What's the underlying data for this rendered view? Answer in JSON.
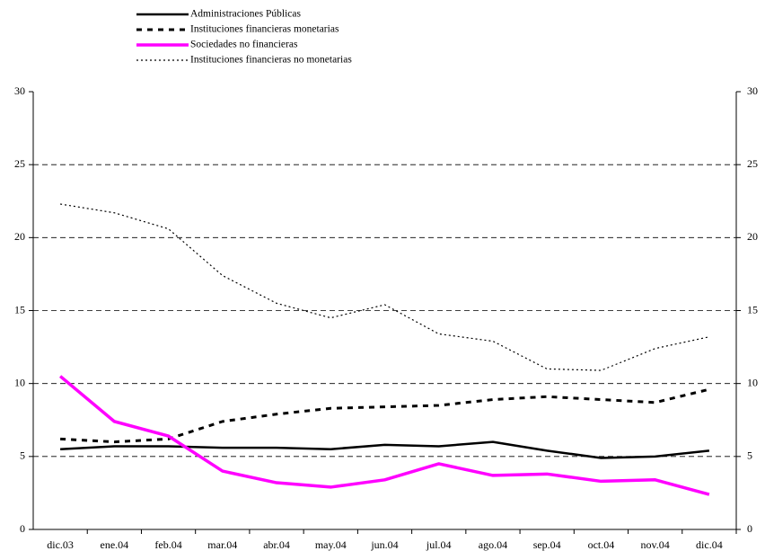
{
  "chart_data": {
    "type": "line",
    "categories": [
      "dic.03",
      "ene.04",
      "feb.04",
      "mar.04",
      "abr.04",
      "may.04",
      "jun.04",
      "jul.04",
      "ago.04",
      "sep.04",
      "oct.04",
      "nov.04",
      "dic.04"
    ],
    "series": [
      {
        "name": "Administraciones Públicas",
        "color": "#000000",
        "style": "solid",
        "values": [
          5.5,
          5.7,
          5.7,
          5.6,
          5.6,
          5.5,
          5.8,
          5.7,
          6.0,
          5.4,
          4.9,
          5.0,
          5.4
        ]
      },
      {
        "name": "Instituciones financieras monetarias",
        "color": "#000000",
        "style": "dashed",
        "values": [
          6.2,
          6.0,
          6.2,
          7.4,
          7.9,
          8.3,
          8.4,
          8.5,
          8.9,
          9.1,
          8.9,
          8.7,
          9.6
        ]
      },
      {
        "name": "Sociedades no financieras",
        "color": "#ff00ff",
        "style": "solid-thick",
        "values": [
          10.5,
          7.4,
          6.4,
          4.0,
          3.2,
          2.9,
          3.4,
          4.5,
          3.7,
          3.8,
          3.3,
          3.4,
          2.4
        ]
      },
      {
        "name": "Instituciones financieras no monetarias",
        "color": "#000000",
        "style": "dotted",
        "values": [
          22.3,
          21.7,
          20.6,
          17.4,
          15.5,
          14.5,
          15.4,
          13.4,
          12.9,
          11.0,
          10.9,
          12.4,
          13.2
        ]
      }
    ],
    "ylim": [
      0,
      30
    ],
    "yticks": [
      0,
      5,
      10,
      15,
      20,
      25,
      30
    ],
    "y2lim": [
      0,
      30
    ],
    "y2ticks": [
      0,
      5,
      10,
      15,
      20,
      25,
      30
    ],
    "grid": true
  }
}
